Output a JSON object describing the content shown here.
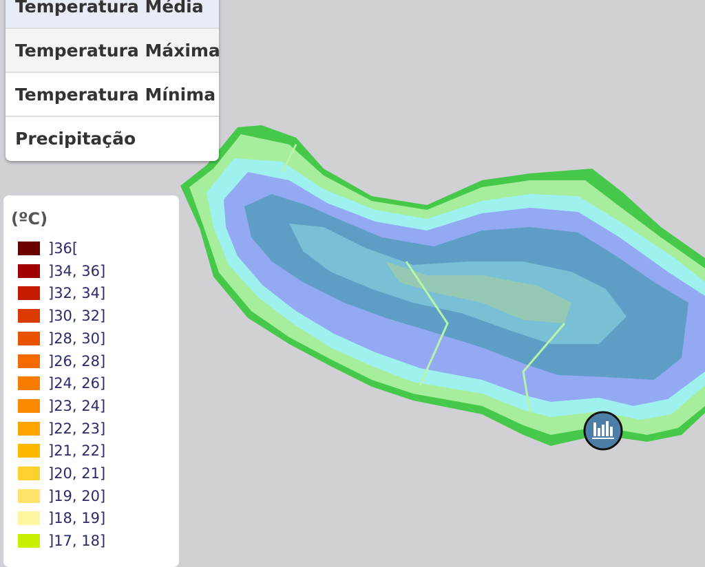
{
  "menu": {
    "items": [
      "Temperatura Média",
      "Temperatura Máxima",
      "Temperatura Mínima",
      "Precipitação"
    ]
  },
  "legend": {
    "title": "(ºC)",
    "items": [
      {
        "label": "]36[",
        "color": "#6b0000"
      },
      {
        "label": "]34, 36]",
        "color": "#a00000"
      },
      {
        "label": "]32, 34]",
        "color": "#c41a00"
      },
      {
        "label": "]30, 32]",
        "color": "#dc3a00"
      },
      {
        "label": "]28, 30]",
        "color": "#ea5200"
      },
      {
        "label": "]26, 28]",
        "color": "#f46a00"
      },
      {
        "label": "]24, 26]",
        "color": "#f87c00"
      },
      {
        "label": "]23, 24]",
        "color": "#fb8a00"
      },
      {
        "label": "]22, 23]",
        "color": "#fda400"
      },
      {
        "label": "]21, 22]",
        "color": "#fdb800"
      },
      {
        "label": "]20, 21]",
        "color": "#fed030"
      },
      {
        "label": "]19, 20]",
        "color": "#ffe26a"
      },
      {
        "label": "]18, 19]",
        "color": "#fff4a0"
      },
      {
        "label": "]17, 18]",
        "color": "#c8f000"
      }
    ]
  }
}
